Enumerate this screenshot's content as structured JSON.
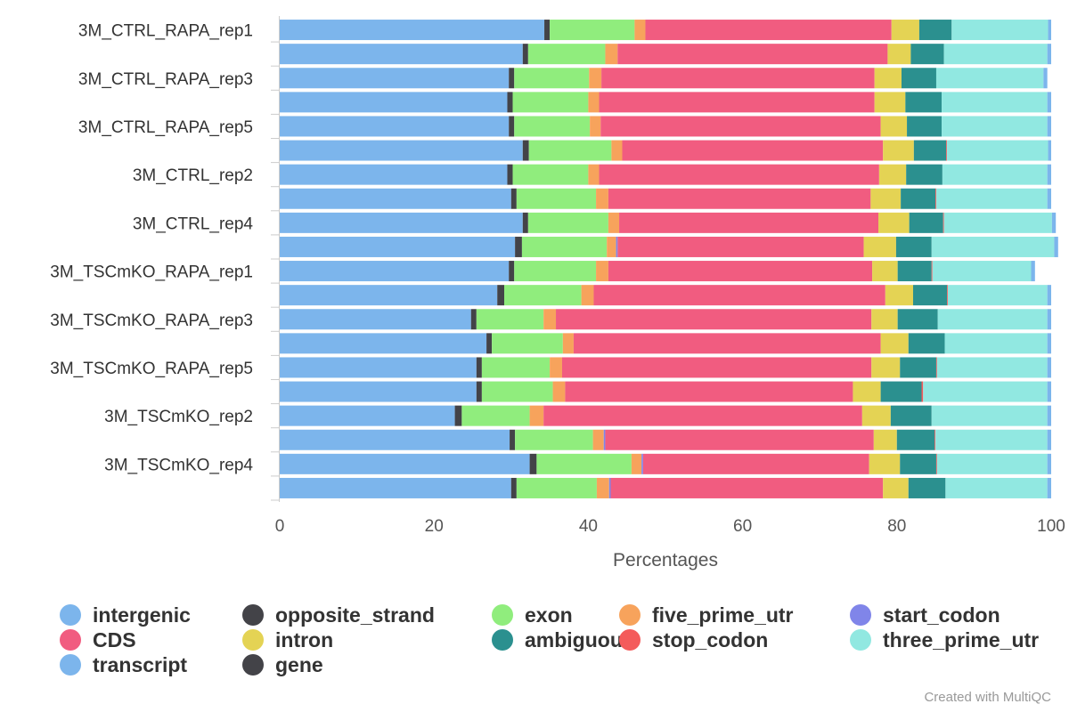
{
  "chart_data": {
    "type": "bar",
    "orientation": "horizontal",
    "stacked": true,
    "xlabel": "Percentages",
    "xlim": [
      0,
      100
    ],
    "x_ticks": [
      "0",
      "20",
      "40",
      "60",
      "80",
      "100"
    ],
    "grid": false,
    "legend_position": "bottom",
    "credit": "Created with MultiQC",
    "category_labels": [
      "3M_CTRL_RAPA_rep1",
      "",
      "3M_CTRL_RAPA_rep3",
      "",
      "3M_CTRL_RAPA_rep5",
      "",
      "3M_CTRL_rep2",
      "",
      "3M_CTRL_rep4",
      "",
      "3M_TSCmKO_RAPA_rep1",
      "",
      "3M_TSCmKO_RAPA_rep3",
      "",
      "3M_TSCmKO_RAPA_rep5",
      "",
      "3M_TSCmKO_rep2",
      "",
      "3M_TSCmKO_rep4",
      ""
    ],
    "series": [
      {
        "name": "intergenic",
        "color": "#7cb5ec",
        "values": [
          34.3,
          31.5,
          29.7,
          29.5,
          29.7,
          31.5,
          29.5,
          30.0,
          31.5,
          30.5,
          29.7,
          28.2,
          24.8,
          26.8,
          25.5,
          25.5,
          22.7,
          29.8,
          32.4,
          30.0
        ]
      },
      {
        "name": "opposite_strand",
        "color": "#434348",
        "values": [
          0.7,
          0.7,
          0.7,
          0.7,
          0.7,
          0.8,
          0.7,
          0.7,
          0.7,
          0.9,
          0.7,
          0.9,
          0.7,
          0.7,
          0.7,
          0.7,
          0.9,
          0.7,
          0.9,
          0.7
        ]
      },
      {
        "name": "exon",
        "color": "#90ed7d",
        "values": [
          11.0,
          10.0,
          9.7,
          9.8,
          9.8,
          10.7,
          9.8,
          10.3,
          10.4,
          11.0,
          10.6,
          10.0,
          8.7,
          9.2,
          8.8,
          9.2,
          8.8,
          10.1,
          12.3,
          10.4
        ]
      },
      {
        "name": "five_prime_utr",
        "color": "#f7a35c",
        "values": [
          1.4,
          1.6,
          1.6,
          1.4,
          1.4,
          1.4,
          1.4,
          1.6,
          1.4,
          1.2,
          1.6,
          1.6,
          1.6,
          1.4,
          1.6,
          1.6,
          1.8,
          1.4,
          1.3,
          1.6
        ]
      },
      {
        "name": "start_codon",
        "color": "#8085e9",
        "values": [
          0,
          0,
          0,
          0,
          0,
          0,
          0,
          0,
          0,
          0.2,
          0,
          0,
          0,
          0,
          0,
          0,
          0,
          0.2,
          0.2,
          0.2
        ]
      },
      {
        "name": "CDS",
        "color": "#f15c80",
        "values": [
          31.9,
          35.0,
          35.4,
          35.7,
          36.3,
          33.8,
          36.3,
          34.0,
          33.6,
          31.9,
          34.2,
          37.8,
          40.9,
          39.8,
          40.1,
          37.3,
          41.3,
          34.8,
          29.3,
          35.3
        ]
      },
      {
        "name": "intron",
        "color": "#e4d354",
        "values": [
          3.6,
          3.0,
          3.5,
          4.0,
          3.4,
          4.0,
          3.5,
          3.9,
          4.0,
          4.2,
          3.3,
          3.6,
          3.4,
          3.6,
          3.7,
          3.6,
          3.7,
          3.0,
          4.0,
          3.3
        ]
      },
      {
        "name": "ambiguous",
        "color": "#2b908f",
        "values": [
          4.2,
          4.3,
          4.5,
          4.7,
          4.5,
          4.2,
          4.7,
          4.5,
          4.4,
          4.6,
          4.4,
          4.4,
          5.2,
          4.7,
          4.7,
          5.3,
          5.3,
          4.9,
          4.7,
          4.8
        ]
      },
      {
        "name": "stop_codon",
        "color": "#f45b5b",
        "values": [
          0,
          0,
          0,
          0,
          0,
          0.1,
          0,
          0.1,
          0.1,
          0,
          0.1,
          0.1,
          0,
          0,
          0.1,
          0.2,
          0,
          0.1,
          0.1,
          0
        ]
      },
      {
        "name": "three_prime_utr",
        "color": "#91e8e1",
        "values": [
          12.5,
          13.4,
          13.9,
          13.7,
          13.7,
          13.1,
          13.6,
          14.4,
          14.0,
          15.9,
          12.8,
          12.9,
          14.2,
          13.3,
          14.3,
          16.1,
          15.0,
          14.5,
          14.3,
          13.2
        ]
      },
      {
        "name": "transcript",
        "color": "#7cb5ec",
        "values": [
          0.4,
          0.5,
          0.5,
          0.5,
          0.5,
          0.4,
          0.5,
          0.5,
          0.5,
          0.5,
          0.5,
          0.5,
          0.5,
          0.5,
          0.5,
          0.5,
          0.5,
          0.5,
          0.5,
          0.5
        ]
      },
      {
        "name": "gene",
        "color": "#434348",
        "values": [
          0,
          0,
          0,
          0,
          0,
          0,
          0,
          0,
          0,
          0,
          0,
          0,
          0,
          0,
          0,
          0,
          0,
          0,
          0,
          0
        ]
      }
    ]
  }
}
